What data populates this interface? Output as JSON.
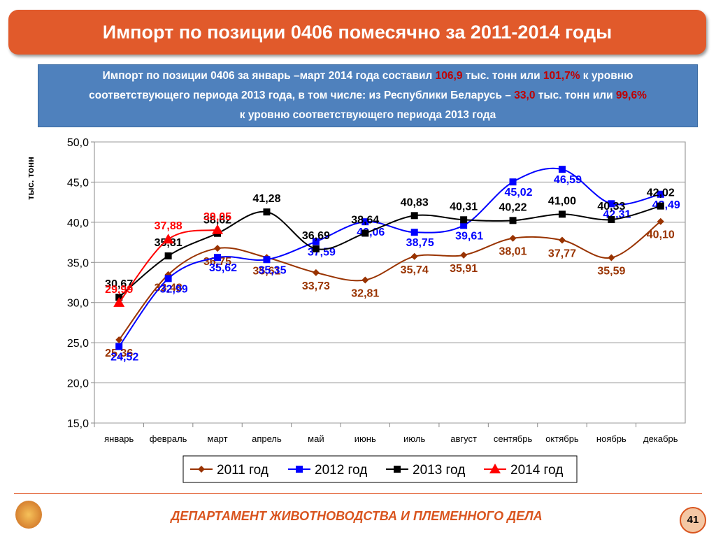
{
  "header": {
    "title": "Импорт по позиции 0406 помесячно за 2011-2014 годы"
  },
  "info": {
    "lines": [
      [
        "Импорт по позиции 0406 за январь –март 2014 года составил ",
        "106,9",
        " тыс. тонн или ",
        "101,7%",
        " к уровню"
      ],
      [
        "соответствующего периода  2013 года, в том числе: из Республики Беларусь – ",
        "33,0",
        " тыс. тонн или ",
        "99,6%"
      ],
      [
        "к уровню соответствующего периода  2013 года"
      ]
    ]
  },
  "chart_data": {
    "type": "line",
    "y_label": "тыс. тонн",
    "categories": [
      "январь",
      "февраль",
      "март",
      "апрель",
      "май",
      "июнь",
      "июль",
      "август",
      "сентябрь",
      "октябрь",
      "ноябрь",
      "декабрь"
    ],
    "ylim": [
      15,
      50
    ],
    "yticks": [
      {
        "value": 15,
        "label": "15,0"
      },
      {
        "value": 20,
        "label": "20,0"
      },
      {
        "value": 25,
        "label": "25,0"
      },
      {
        "value": 30,
        "label": "30,0"
      },
      {
        "value": 35,
        "label": "35,0"
      },
      {
        "value": 40,
        "label": "40,0"
      },
      {
        "value": 45,
        "label": "45,0"
      },
      {
        "value": 50,
        "label": "50,0"
      }
    ],
    "grid": true,
    "legend": "bottom",
    "series": [
      {
        "name": "2011 год",
        "color": "#993300",
        "marker": "diamond",
        "values": [
          25.36,
          33.48,
          36.75,
          35.61,
          33.73,
          32.81,
          35.74,
          35.91,
          38.01,
          37.77,
          35.59,
          40.1
        ],
        "value_labels": [
          "25,36",
          "33,48",
          "36,75",
          "35,61",
          "33,73",
          "32,81",
          "35,74",
          "35,91",
          "38,01",
          "37,77",
          "35,59",
          "40,10"
        ]
      },
      {
        "name": "2012 год",
        "color": "#0000ff",
        "marker": "square",
        "values": [
          24.52,
          32.99,
          35.62,
          35.35,
          37.59,
          40.06,
          38.75,
          39.61,
          45.02,
          46.59,
          42.31,
          43.49
        ],
        "value_labels": [
          "24,52",
          "32,99",
          "35,62",
          "35,35",
          "37,59",
          "40,06",
          "38,75",
          "39,61",
          "45,02",
          "46,59",
          "42,31",
          "43,49"
        ]
      },
      {
        "name": "2013 год",
        "color": "#000000",
        "marker": "square",
        "values": [
          30.67,
          35.81,
          38.62,
          41.28,
          36.69,
          38.64,
          40.83,
          40.31,
          40.22,
          41.0,
          40.33,
          42.02
        ],
        "value_labels": [
          "30,67",
          "35,81",
          "38,62",
          "41,28",
          "36,69",
          "38,64",
          "40,83",
          "40,31",
          "40,22",
          "41,00",
          "40,33",
          "42,02"
        ]
      },
      {
        "name": "2014 год",
        "color": "#ff0000",
        "marker": "triangle",
        "values": [
          29.99,
          37.88,
          39.05,
          null,
          null,
          null,
          null,
          null,
          null,
          null,
          null,
          null
        ],
        "value_labels": [
          "29,99",
          "37,88",
          "39,05",
          null,
          null,
          null,
          null,
          null,
          null,
          null,
          null,
          null
        ]
      }
    ]
  },
  "footer": {
    "department": "ДЕПАРТАМЕНТ ЖИВОТНОВОДСТВА И ПЛЕМЕННОГО ДЕЛА",
    "page": "41"
  }
}
